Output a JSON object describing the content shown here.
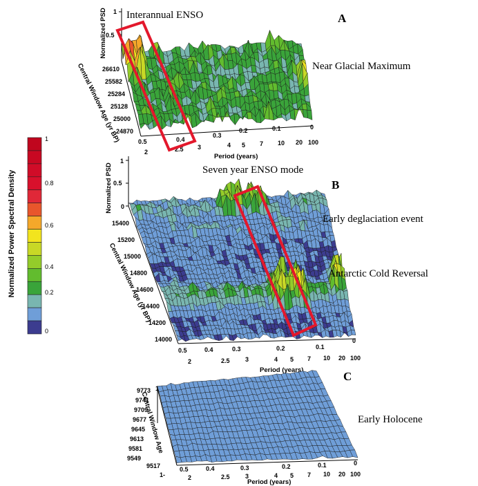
{
  "colors": {
    "scale": [
      "#3c3c8f",
      "#6f9ed8",
      "#79b6b0",
      "#3aa43a",
      "#62bc2e",
      "#94cc2a",
      "#c8d826",
      "#f2e41e",
      "#f5a82a",
      "#e8562c",
      "#e02838",
      "#d8102c",
      "#d00c28",
      "#c80822",
      "#c0061e"
    ],
    "box": "#e3182c",
    "grid": "#1a1a1a"
  },
  "colorbar": {
    "title": "Normalized Power Spectral Density",
    "labels": [
      "1",
      "0.8",
      "0.6",
      "0.4",
      "0.2",
      "0"
    ]
  },
  "panels": [
    {
      "letter": "A",
      "zlabel": "Normalized PSD",
      "zticks": [
        "1",
        "0.5"
      ],
      "zlabel_zero": "",
      "yaxis_label": "Central Window Age (yr BP)",
      "yticks": [
        "26610",
        "25582",
        "25284",
        "25128",
        "25000",
        "24870"
      ],
      "xaxis_label": "Period (years)",
      "xticks_freq": [
        "0.5",
        "0.4",
        "0.3",
        "0.2",
        "0.1",
        "0"
      ],
      "xticks_period": [
        "2",
        "2.5",
        "3",
        "4",
        "5",
        "7",
        "10",
        "20",
        "100"
      ],
      "annotations": [
        "Interannual ENSO",
        "Near Glacial Maximum"
      ]
    },
    {
      "letter": "B",
      "zlabel": "Normalized PSD",
      "zticks": [
        "1",
        "0.5",
        "0"
      ],
      "yaxis_label": "Central Window Age (yr BP)",
      "yticks": [
        "15400",
        "15200",
        "15000",
        "14800",
        "14600",
        "14400",
        "14200",
        "14000"
      ],
      "xaxis_label": "Period (years)",
      "xticks_freq": [
        "0.5",
        "0.4",
        "0.3",
        "0.2",
        "0.1",
        "0"
      ],
      "xticks_period": [
        "2",
        "2.5",
        "3",
        "4",
        "5",
        "7",
        "10",
        "20",
        "100"
      ],
      "annotations": [
        "Seven year ENSO mode",
        "Early deglaciation event",
        "Antarctic Cold Reversal"
      ]
    },
    {
      "letter": "C",
      "zlabel": "",
      "zticks": [
        "1",
        "1-"
      ],
      "yaxis_label": "Central Window Age",
      "yticks": [
        "9773",
        "9741",
        "9709",
        "9677",
        "9645",
        "9613",
        "9581",
        "9549",
        "9517"
      ],
      "xaxis_label": "Period (years)",
      "xticks_freq": [
        "0.5",
        "0.4",
        "0.3",
        "0.2",
        "0.1",
        "0"
      ],
      "xticks_period": [
        "2",
        "2.5",
        "3",
        "4",
        "5",
        "7",
        "10",
        "20",
        "100"
      ],
      "annotations": [
        "Early Holocene"
      ]
    }
  ],
  "chart_data": [
    {
      "type": "heatmap",
      "title": "A",
      "xlabel": "Period (years)",
      "ylabel": "Central Window Age (yr BP)",
      "zlabel": "Normalized PSD",
      "x_frequency_range": [
        0.5,
        0
      ],
      "x_period_ticks": [
        2,
        2.5,
        3,
        4,
        5,
        7,
        10,
        20,
        100
      ],
      "y_ticks": [
        26610,
        25582,
        25284,
        25128,
        25000,
        24870
      ],
      "zlim": [
        0,
        1
      ],
      "dominant_levels": "0.1-0.4, peaks near 0.8-1.0 at frequency ~0.45-0.5 (period 2-2.5 yr)",
      "highlight_region": {
        "label": "Interannual ENSO",
        "frequency": [
          0.35,
          0.5
        ]
      }
    },
    {
      "type": "heatmap",
      "title": "B",
      "xlabel": "Period (years)",
      "ylabel": "Central Window Age (yr BP)",
      "zlabel": "Normalized PSD",
      "x_frequency_range": [
        0.5,
        0
      ],
      "x_period_ticks": [
        2,
        2.5,
        3,
        4,
        5,
        7,
        10,
        20,
        100
      ],
      "y_ticks": [
        14000,
        14200,
        14400,
        14600,
        14800,
        15000,
        15200,
        15400
      ],
      "zlim": [
        0,
        1
      ],
      "dominant_levels": "mostly 0-0.1, peaks 0.4-0.9 near 15400 and 14450 yr BP at frequency ~0.15-0.2 (period ~7 yr)",
      "highlight_region": {
        "label": "Seven year ENSO mode",
        "frequency": [
          0.12,
          0.2
        ]
      }
    },
    {
      "type": "heatmap",
      "title": "C",
      "xlabel": "Period (years)",
      "ylabel": "Central Window Age",
      "x_frequency_range": [
        0.5,
        0
      ],
      "x_period_ticks": [
        2,
        2.5,
        3,
        4,
        5,
        7,
        10,
        20,
        100
      ],
      "y_ticks": [
        9517,
        9549,
        9581,
        9613,
        9645,
        9677,
        9709,
        9741,
        9773
      ],
      "dominant_levels": "uniformly low (~0.1)"
    }
  ]
}
